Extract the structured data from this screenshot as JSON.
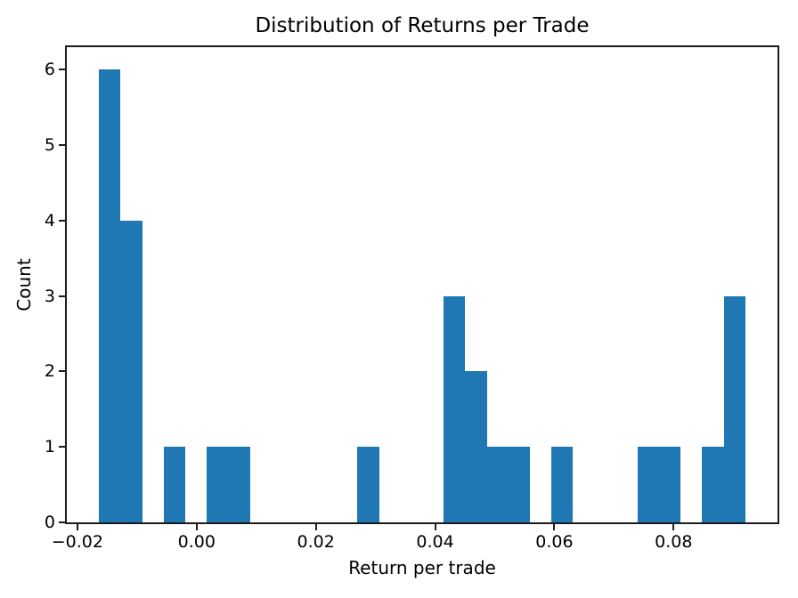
{
  "figure": {
    "background": "#ffffff"
  },
  "chart_data": {
    "type": "bar",
    "kind": "histogram",
    "title": "Distribution of Returns per Trade",
    "xlabel": "Return per trade",
    "ylabel": "Count",
    "grid": false,
    "legend": null,
    "bar_color": "#1f77b4",
    "axis_color": "#1c1c1c",
    "text_color": "#000000",
    "n_bins": 30,
    "bin_start": -0.016356,
    "bin_width": 0.0036122,
    "counts": [
      6,
      4,
      0,
      1,
      0,
      1,
      1,
      0,
      0,
      0,
      0,
      0,
      1,
      0,
      0,
      0,
      3,
      2,
      1,
      1,
      0,
      1,
      0,
      0,
      0,
      1,
      1,
      0,
      1,
      3
    ],
    "xlim": [
      -0.0217743,
      0.0974283
    ],
    "ylim": [
      0,
      6.3
    ],
    "xticks": [
      {
        "value": -0.02,
        "label": "−0.02"
      },
      {
        "value": 0.0,
        "label": "0.00"
      },
      {
        "value": 0.02,
        "label": "0.02"
      },
      {
        "value": 0.04,
        "label": "0.04"
      },
      {
        "value": 0.06,
        "label": "0.06"
      },
      {
        "value": 0.08,
        "label": "0.08"
      }
    ],
    "yticks": [
      {
        "value": 0,
        "label": "0"
      },
      {
        "value": 1,
        "label": "1"
      },
      {
        "value": 2,
        "label": "2"
      },
      {
        "value": 3,
        "label": "3"
      },
      {
        "value": 4,
        "label": "4"
      },
      {
        "value": 5,
        "label": "5"
      },
      {
        "value": 6,
        "label": "6"
      }
    ]
  }
}
